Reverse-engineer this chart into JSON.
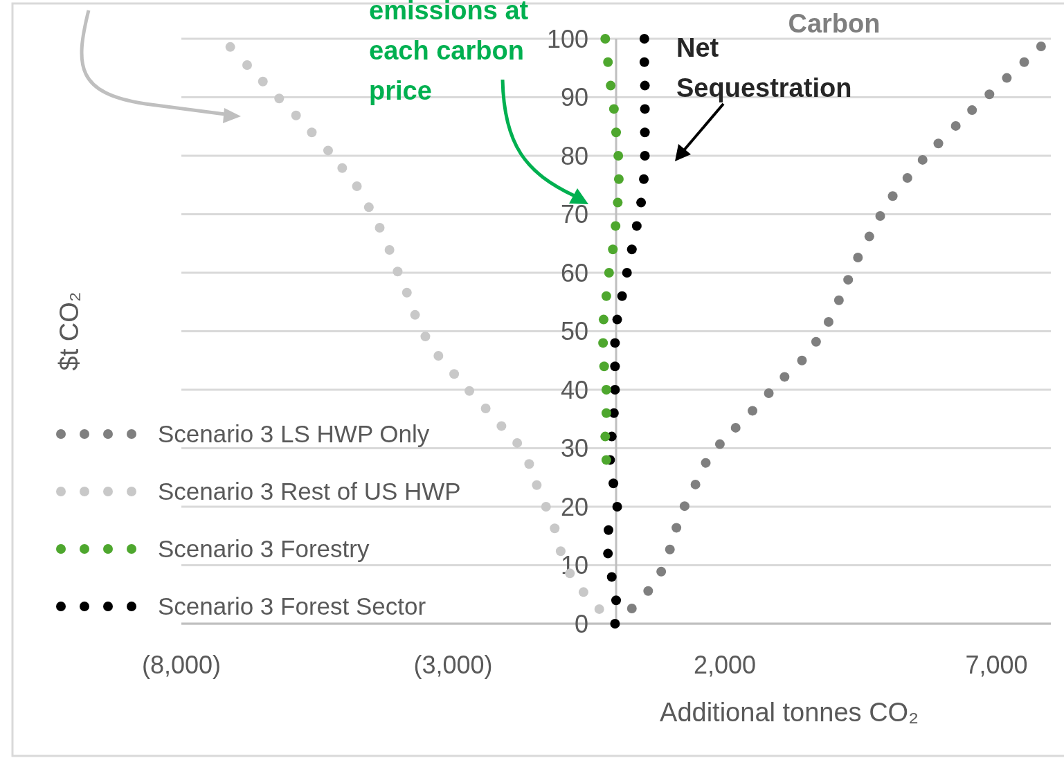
{
  "chart_data": {
    "type": "scatter",
    "xlabel": "Additional tonnes CO₂",
    "ylabel": "$t CO₂",
    "xlim": [
      -8000,
      8000
    ],
    "ylim": [
      0,
      100
    ],
    "xticks": [
      {
        "value": -8000,
        "label": "(8,000)"
      },
      {
        "value": -3000,
        "label": "(3,000)"
      },
      {
        "value": 2000,
        "label": "2,000"
      },
      {
        "value": 7000,
        "label": "7,000"
      }
    ],
    "yticks": [
      0,
      10,
      20,
      30,
      40,
      50,
      60,
      70,
      80,
      90,
      100
    ],
    "grid": "y",
    "legend": "left",
    "marker": "circle",
    "annotations": [
      "emissions at each carbon price",
      "Carbon",
      "Net Sequestration"
    ],
    "series": [
      {
        "name": "Scenario 3 LS HWP Only",
        "color": "#7f7f7f",
        "x": [
          290,
          590,
          830,
          990,
          1110,
          1260,
          1460,
          1650,
          1910,
          2200,
          2510,
          2810,
          3100,
          3420,
          3680,
          3910,
          4100,
          4270,
          4450,
          4660,
          4860,
          5090,
          5360,
          5640,
          5930,
          6250,
          6550,
          6870,
          7190,
          7510,
          7820
        ],
        "values": [
          2.6,
          5.6,
          8.9,
          12.7,
          16.4,
          20.1,
          23.8,
          27.5,
          30.7,
          33.5,
          36.4,
          39.4,
          42.2,
          45,
          48.2,
          51.6,
          55.3,
          58.8,
          62.6,
          66.2,
          69.7,
          73.1,
          76.2,
          79.3,
          82.1,
          85.1,
          87.8,
          90.5,
          93.3,
          96,
          98.7
        ]
      },
      {
        "name": "Scenario 3 Rest of US HWP",
        "color": "#c8c8c8",
        "x": [
          -7100,
          -6790,
          -6500,
          -6200,
          -5890,
          -5600,
          -5300,
          -5040,
          -4770,
          -4550,
          -4350,
          -4170,
          -4020,
          -3850,
          -3700,
          -3510,
          -3270,
          -2980,
          -2700,
          -2400,
          -2110,
          -1820,
          -1600,
          -1460,
          -1290,
          -1130,
          -1020,
          -850,
          -600,
          -310
        ],
        "values": [
          98.6,
          95.5,
          92.7,
          89.8,
          86.9,
          84,
          80.9,
          77.9,
          74.8,
          71.2,
          67.7,
          63.9,
          60.2,
          56.6,
          52.8,
          49.1,
          45.8,
          42.7,
          39.8,
          36.8,
          33.8,
          30.9,
          27.3,
          23.7,
          20,
          16.3,
          12.4,
          8.6,
          5.4,
          2.5
        ]
      },
      {
        "name": "Scenario 3 Forestry",
        "color": "#4ea72e",
        "x": [
          -180,
          -200,
          -180,
          -180,
          -220,
          -240,
          -230,
          -180,
          -130,
          -60,
          -10,
          30,
          50,
          40,
          0,
          -40,
          -100,
          -150,
          -200
        ],
        "values": [
          28,
          32,
          36,
          40,
          44,
          48,
          52,
          56,
          60,
          64,
          68,
          72,
          76,
          80,
          84,
          88,
          92,
          96,
          100
        ]
      },
      {
        "name": "Scenario 3 Forest Sector",
        "color": "#000000",
        "x": [
          -20,
          0,
          -80,
          -150,
          -140,
          20,
          -50,
          -110,
          -80,
          -40,
          -20,
          -20,
          -20,
          20,
          110,
          200,
          290,
          380,
          460,
          510,
          530,
          530,
          530,
          530,
          520,
          520
        ],
        "values": [
          0,
          4,
          8,
          12,
          16,
          20,
          24,
          28,
          32,
          36,
          40,
          44,
          48,
          52,
          56,
          60,
          64,
          68,
          72,
          76,
          80,
          84,
          88,
          92,
          96,
          100
        ]
      }
    ]
  }
}
